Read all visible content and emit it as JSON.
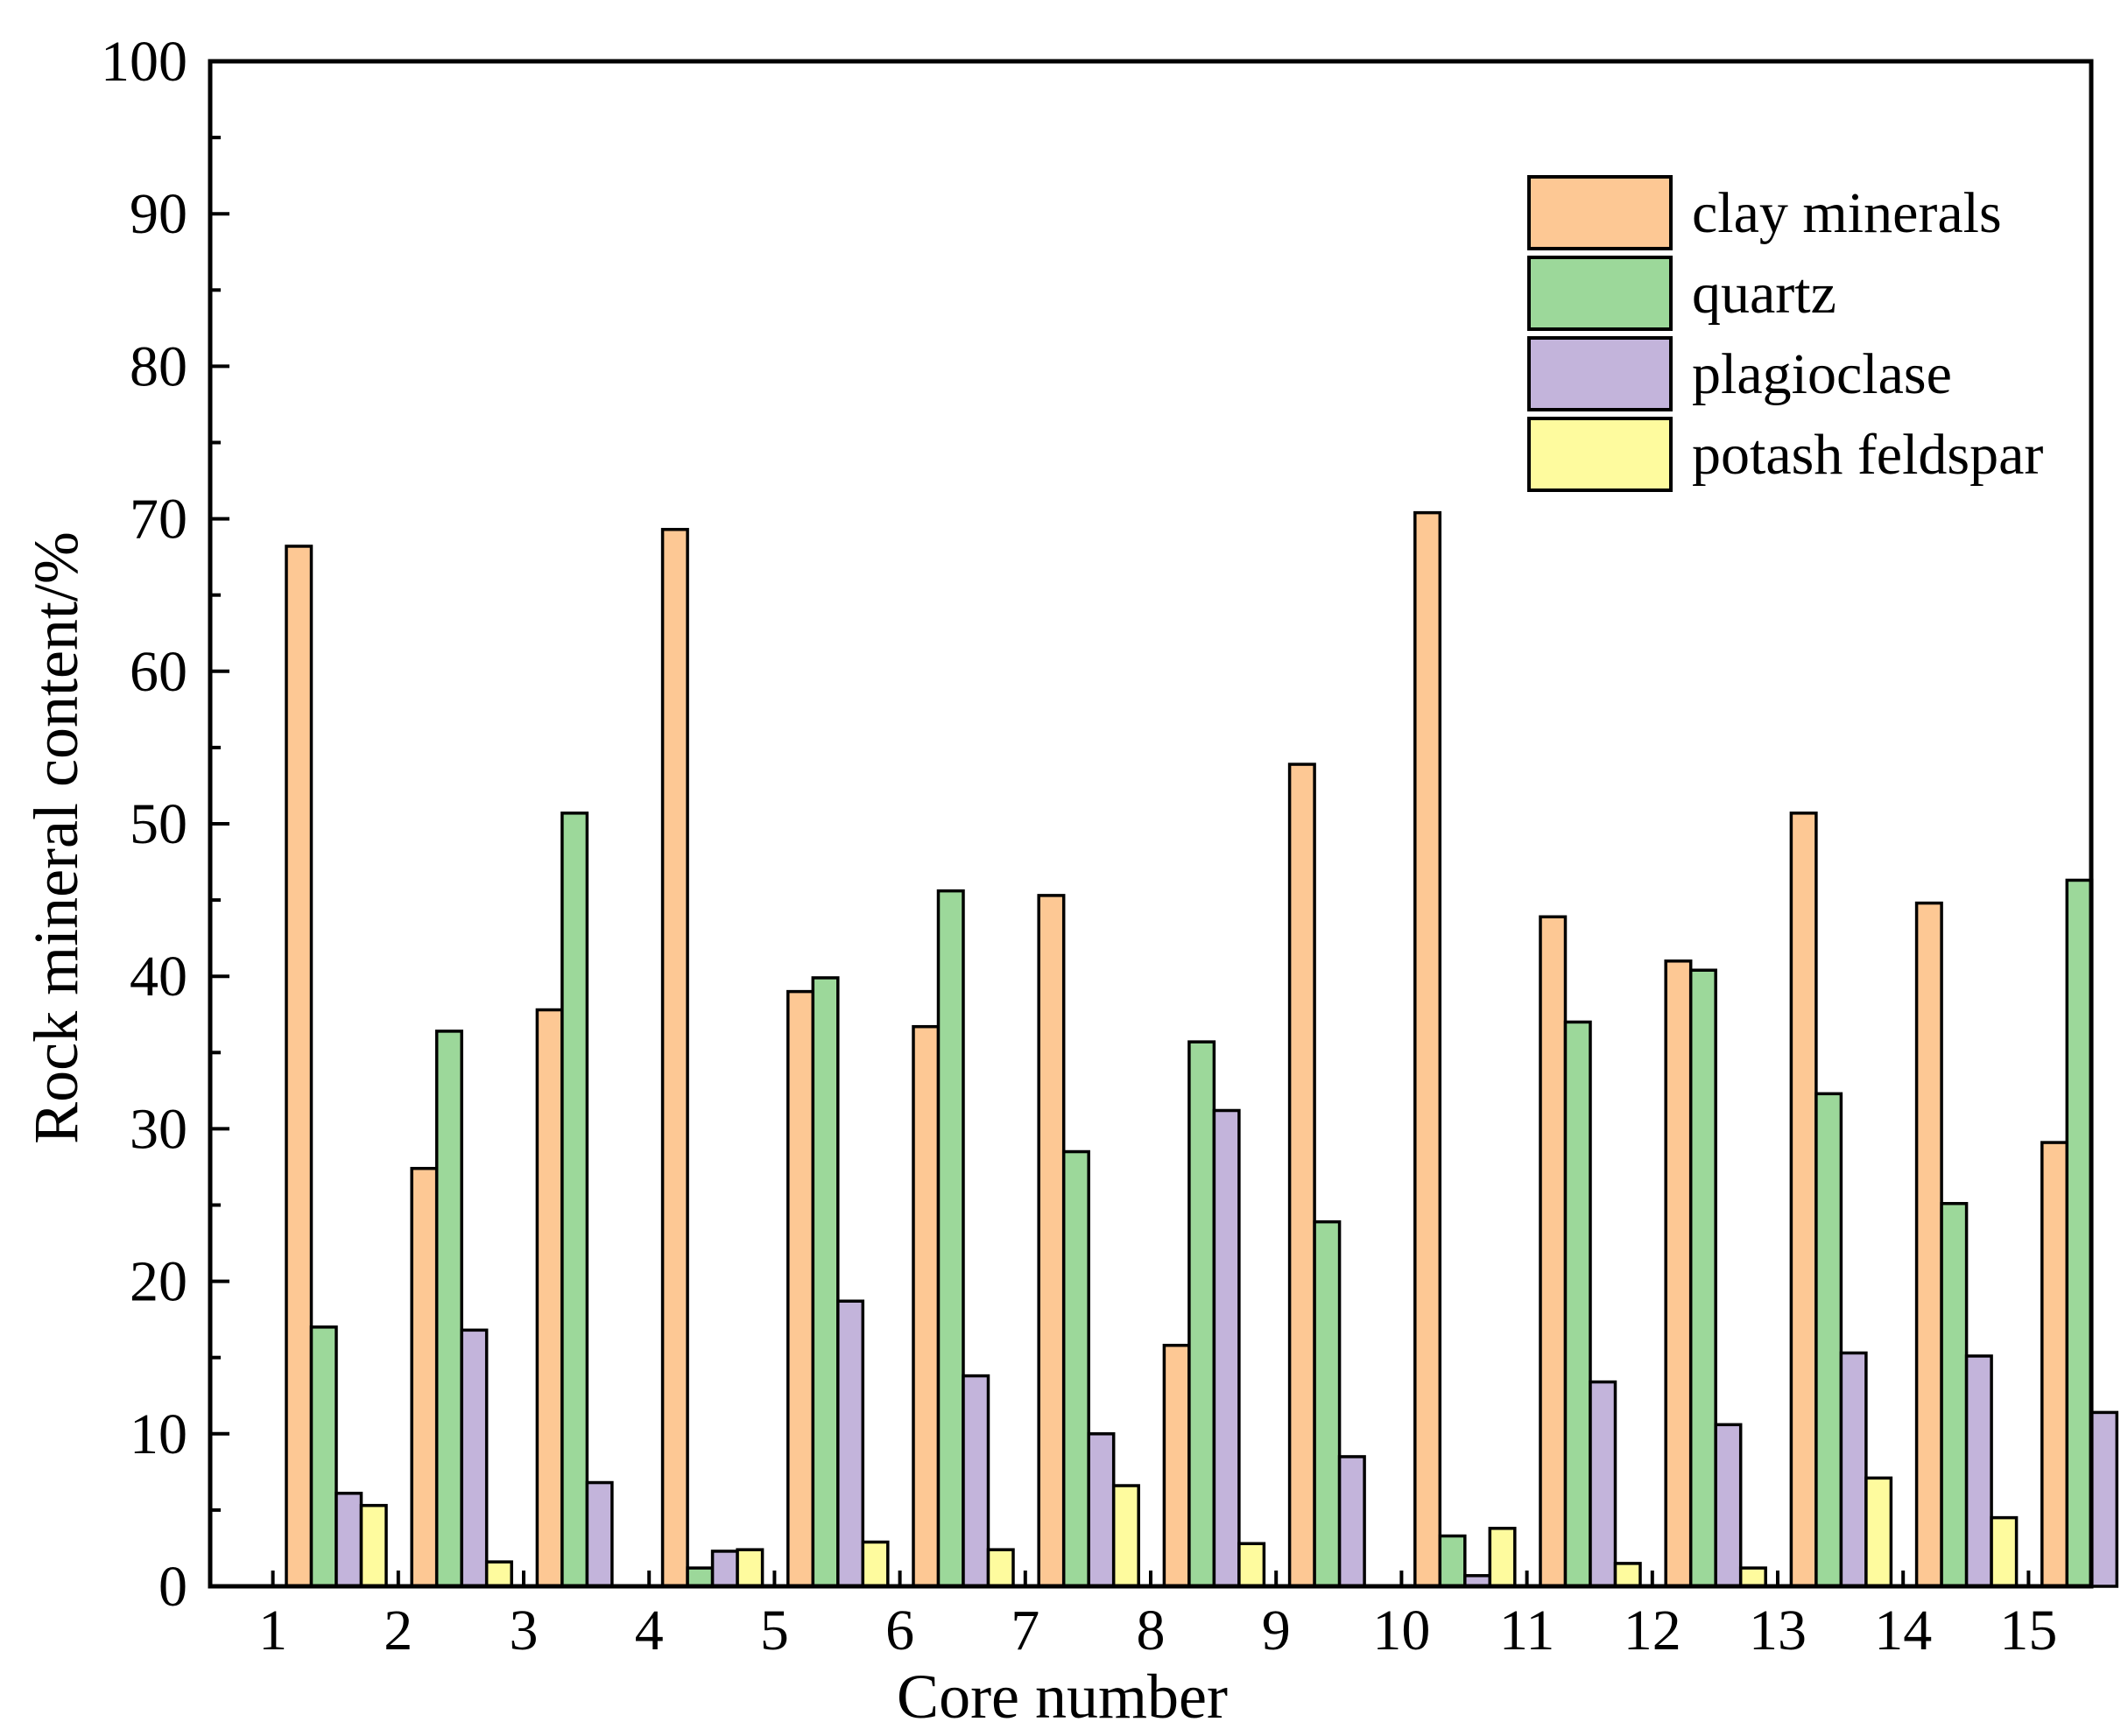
{
  "chart_data": {
    "type": "bar",
    "title": "",
    "xlabel": "Core number",
    "ylabel": "Rock mineral content/%",
    "ylim": [
      0,
      100
    ],
    "yticks": [
      0,
      10,
      20,
      30,
      40,
      50,
      60,
      70,
      80,
      90,
      100
    ],
    "grid": false,
    "legend_position": "top-right",
    "categories": [
      "1",
      "2",
      "3",
      "4",
      "5",
      "6",
      "7",
      "8",
      "9",
      "10",
      "11",
      "12",
      "13",
      "14",
      "15"
    ],
    "series": [
      {
        "name": "clay minerals",
        "color": "#FDC894",
        "values": [
          68.2,
          27.4,
          37.8,
          69.3,
          39.0,
          36.7,
          45.3,
          15.8,
          53.9,
          70.4,
          43.9,
          41.0,
          50.7,
          44.8,
          29.1
        ]
      },
      {
        "name": "quartz",
        "color": "#9CD89A",
        "values": [
          17.0,
          36.4,
          50.7,
          1.2,
          39.9,
          45.6,
          28.5,
          35.7,
          23.9,
          3.3,
          37.0,
          40.4,
          32.3,
          25.1,
          46.3
        ]
      },
      {
        "name": "plagioclase",
        "color": "#C3B4DB",
        "values": [
          6.1,
          16.8,
          6.8,
          2.3,
          18.7,
          13.8,
          10.0,
          31.2,
          8.5,
          0.7,
          13.4,
          10.6,
          15.3,
          15.1,
          11.4
        ]
      },
      {
        "name": "potash feldspar",
        "color": "#FEFB9E",
        "values": [
          5.3,
          1.6,
          0,
          2.4,
          2.9,
          2.4,
          6.6,
          2.8,
          0,
          3.8,
          1.5,
          1.2,
          7.1,
          4.5,
          0
        ]
      }
    ]
  }
}
